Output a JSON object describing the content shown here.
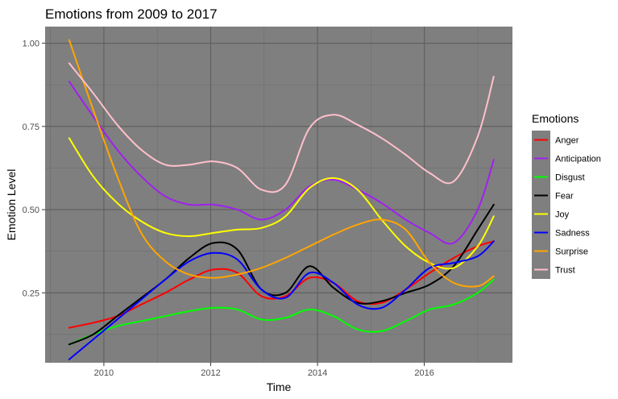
{
  "chart_data": {
    "type": "line",
    "title": "Emotions from 2009 to 2017",
    "xlabel": "Time",
    "ylabel": "Emotion Level",
    "xlim": [
      2008.9,
      2017.65
    ],
    "ylim": [
      0.04,
      1.05
    ],
    "x_ticks": [
      2010,
      2012,
      2014,
      2016
    ],
    "x_tick_labels": [
      "2010",
      "2012",
      "2014",
      "2016"
    ],
    "y_ticks": [
      0.25,
      0.5,
      0.75,
      1.0
    ],
    "y_tick_labels": [
      "0.25",
      "0.50",
      "0.75",
      "1.00"
    ],
    "grid": true,
    "panel_background": "#7f7f7f",
    "legend": {
      "title": "Emotions",
      "position": "right"
    },
    "x": [
      2009.35,
      2009.8,
      2010.25,
      2010.7,
      2011.15,
      2011.6,
      2012.05,
      2012.5,
      2012.95,
      2013.4,
      2013.85,
      2014.3,
      2014.75,
      2015.2,
      2015.65,
      2016.1,
      2016.55,
      2017.0,
      2017.3
    ],
    "series": [
      {
        "name": "Anger",
        "color": "#ff0000",
        "values": [
          0.145,
          0.16,
          0.18,
          0.215,
          0.25,
          0.29,
          0.32,
          0.31,
          0.24,
          0.24,
          0.295,
          0.28,
          0.225,
          0.22,
          0.26,
          0.31,
          0.355,
          0.39,
          0.405
        ]
      },
      {
        "name": "Anticipation",
        "color": "#a020f0",
        "values": [
          0.885,
          0.78,
          0.68,
          0.6,
          0.54,
          0.515,
          0.515,
          0.5,
          0.47,
          0.5,
          0.57,
          0.59,
          0.56,
          0.52,
          0.47,
          0.43,
          0.4,
          0.5,
          0.65
        ]
      },
      {
        "name": "Disgust",
        "color": "#00ff00",
        "values": [
          0.095,
          0.125,
          0.15,
          0.165,
          0.18,
          0.195,
          0.205,
          0.2,
          0.17,
          0.175,
          0.2,
          0.18,
          0.14,
          0.135,
          0.165,
          0.2,
          0.215,
          0.25,
          0.29
        ]
      },
      {
        "name": "Fear",
        "color": "#000000",
        "values": [
          0.095,
          0.125,
          0.18,
          0.235,
          0.29,
          0.355,
          0.4,
          0.38,
          0.26,
          0.25,
          0.33,
          0.265,
          0.22,
          0.225,
          0.25,
          0.275,
          0.33,
          0.44,
          0.515
        ]
      },
      {
        "name": "Joy",
        "color": "#ffff00",
        "values": [
          0.715,
          0.6,
          0.52,
          0.465,
          0.43,
          0.42,
          0.43,
          0.44,
          0.445,
          0.48,
          0.565,
          0.595,
          0.56,
          0.47,
          0.39,
          0.34,
          0.325,
          0.39,
          0.48
        ]
      },
      {
        "name": "Sadness",
        "color": "#0000ff",
        "values": [
          0.05,
          0.11,
          0.17,
          0.23,
          0.29,
          0.345,
          0.37,
          0.35,
          0.26,
          0.235,
          0.31,
          0.28,
          0.215,
          0.205,
          0.26,
          0.325,
          0.34,
          0.36,
          0.405
        ]
      },
      {
        "name": "Surprise",
        "color": "#ffa500",
        "values": [
          1.01,
          0.8,
          0.6,
          0.43,
          0.345,
          0.305,
          0.295,
          0.305,
          0.325,
          0.355,
          0.39,
          0.425,
          0.455,
          0.47,
          0.44,
          0.34,
          0.28,
          0.27,
          0.3
        ]
      },
      {
        "name": "Trust",
        "color": "#ffc0cb",
        "values": [
          0.94,
          0.85,
          0.755,
          0.68,
          0.635,
          0.635,
          0.645,
          0.625,
          0.56,
          0.575,
          0.745,
          0.785,
          0.755,
          0.715,
          0.665,
          0.61,
          0.585,
          0.72,
          0.9
        ]
      }
    ]
  }
}
